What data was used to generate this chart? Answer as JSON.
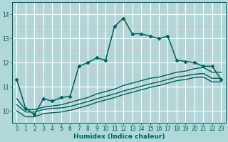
{
  "title": "",
  "xlabel": "Humidex (Indice chaleur)",
  "ylabel": "",
  "xlim": [
    -0.5,
    23.5
  ],
  "ylim": [
    9.5,
    14.3
  ],
  "yticks": [
    10,
    11,
    12,
    13,
    14
  ],
  "xticks": [
    0,
    1,
    2,
    3,
    4,
    5,
    6,
    7,
    8,
    9,
    10,
    11,
    12,
    13,
    14,
    15,
    16,
    17,
    18,
    19,
    20,
    21,
    22,
    23
  ],
  "bg_color": "#b0d8d8",
  "line_color": "#006060",
  "grid_color_major": "#e8e8e8",
  "grid_color_minor": "#f0c0c0",
  "lines": [
    {
      "x": [
        0,
        1,
        2,
        3,
        4,
        5,
        6,
        7,
        8,
        9,
        10,
        11,
        12,
        13,
        14,
        15,
        16,
        17,
        18,
        19,
        20,
        21,
        22,
        23
      ],
      "y": [
        11.3,
        10.1,
        9.85,
        10.5,
        10.4,
        10.55,
        10.6,
        11.85,
        12.0,
        12.2,
        12.1,
        13.5,
        13.85,
        13.2,
        13.2,
        13.1,
        13.0,
        13.1,
        12.1,
        12.05,
        12.0,
        11.85,
        11.85,
        11.3
      ],
      "marker": "D",
      "markersize": 2.5,
      "linewidth": 1.1,
      "zorder": 4
    },
    {
      "x": [
        0,
        1,
        2,
        3,
        4,
        5,
        6,
        7,
        8,
        9,
        10,
        11,
        12,
        13,
        14,
        15,
        16,
        17,
        18,
        19,
        20,
        21,
        22,
        23
      ],
      "y": [
        10.5,
        10.05,
        10.05,
        10.15,
        10.2,
        10.25,
        10.35,
        10.45,
        10.55,
        10.7,
        10.8,
        10.9,
        11.05,
        11.15,
        11.25,
        11.35,
        11.4,
        11.5,
        11.6,
        11.65,
        11.75,
        11.8,
        11.6,
        11.6
      ],
      "marker": null,
      "linewidth": 1.0,
      "zorder": 2
    },
    {
      "x": [
        0,
        1,
        2,
        3,
        4,
        5,
        6,
        7,
        8,
        9,
        10,
        11,
        12,
        13,
        14,
        15,
        16,
        17,
        18,
        19,
        20,
        21,
        22,
        23
      ],
      "y": [
        10.25,
        9.95,
        9.95,
        10.05,
        10.1,
        10.12,
        10.18,
        10.28,
        10.38,
        10.5,
        10.6,
        10.7,
        10.82,
        10.92,
        11.02,
        11.12,
        11.2,
        11.3,
        11.4,
        11.45,
        11.52,
        11.55,
        11.35,
        11.35
      ],
      "marker": null,
      "linewidth": 1.0,
      "zorder": 2
    },
    {
      "x": [
        0,
        1,
        2,
        3,
        4,
        5,
        6,
        7,
        8,
        9,
        10,
        11,
        12,
        13,
        14,
        15,
        16,
        17,
        18,
        19,
        20,
        21,
        22,
        23
      ],
      "y": [
        10.0,
        9.75,
        9.75,
        9.88,
        9.92,
        9.95,
        10.02,
        10.12,
        10.22,
        10.35,
        10.45,
        10.55,
        10.67,
        10.77,
        10.87,
        10.97,
        11.05,
        11.15,
        11.25,
        11.3,
        11.38,
        11.4,
        11.2,
        11.2
      ],
      "marker": null,
      "linewidth": 1.0,
      "zorder": 2
    }
  ]
}
